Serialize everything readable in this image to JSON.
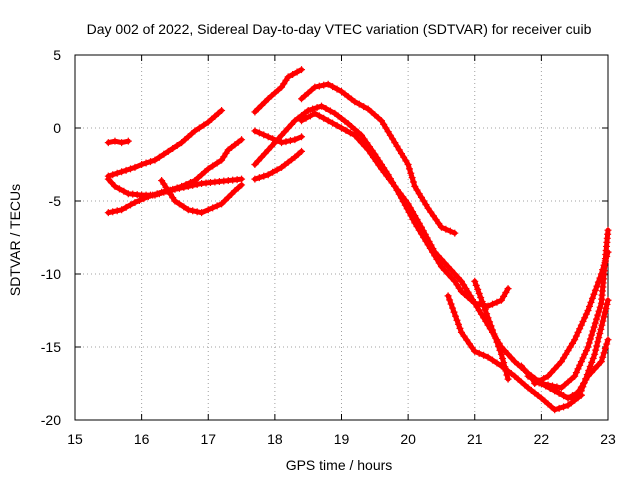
{
  "chart_data": {
    "type": "scatter",
    "title": "Day 002 of 2022, Sidereal Day-to-day VTEC variation (SDTVAR) for receiver cuib",
    "xlabel": "GPS time / hours",
    "ylabel": "SDTVAR / TECUs",
    "xlim": [
      15,
      23
    ],
    "ylim": [
      -20,
      5
    ],
    "xticks": [
      15,
      16,
      17,
      18,
      19,
      20,
      21,
      22,
      23
    ],
    "yticks": [
      5,
      0,
      -5,
      -10,
      -15,
      -20
    ],
    "xtick_labels": [
      "15",
      "16",
      "17",
      "18",
      "19",
      "20",
      "21",
      "22",
      "23"
    ],
    "ytick_labels": [
      "5",
      "0",
      "-5",
      "-10",
      "-15",
      "-20"
    ],
    "grid": true,
    "marker": "plus",
    "color": "#ff0000",
    "series": [
      {
        "name": "s1",
        "x": [
          15.5,
          15.6,
          15.7,
          15.8
        ],
        "y": [
          -1.0,
          -0.9,
          -1.0,
          -0.9
        ]
      },
      {
        "name": "s2",
        "x": [
          15.5,
          15.7,
          15.9,
          16.0,
          16.2,
          16.4,
          16.6,
          16.8,
          17.0,
          17.2
        ],
        "y": [
          -3.3,
          -3.0,
          -2.7,
          -2.5,
          -2.2,
          -1.6,
          -1.0,
          -0.2,
          0.4,
          1.2
        ]
      },
      {
        "name": "s3",
        "x": [
          15.5,
          15.6,
          15.8,
          16.0,
          16.2,
          16.4,
          16.6,
          16.8,
          17.0,
          17.2,
          17.3,
          17.5
        ],
        "y": [
          -3.5,
          -4.0,
          -4.5,
          -4.6,
          -4.6,
          -4.3,
          -4.0,
          -3.6,
          -2.8,
          -2.2,
          -1.5,
          -0.8
        ]
      },
      {
        "name": "s4",
        "x": [
          15.5,
          15.7,
          15.9,
          16.1,
          16.3,
          16.5,
          16.7,
          16.9,
          17.1,
          17.3,
          17.5
        ],
        "y": [
          -5.8,
          -5.6,
          -5.1,
          -4.7,
          -4.4,
          -4.2,
          -4.0,
          -3.8,
          -3.7,
          -3.6,
          -3.5
        ]
      },
      {
        "name": "s5",
        "x": [
          16.3,
          16.5,
          16.7,
          16.9,
          17.0,
          17.2,
          17.4,
          17.5
        ],
        "y": [
          -3.6,
          -5.0,
          -5.6,
          -5.8,
          -5.6,
          -5.2,
          -4.3,
          -3.9
        ]
      },
      {
        "name": "s6",
        "x": [
          17.7,
          17.9,
          18.1,
          18.3,
          18.4
        ],
        "y": [
          -0.2,
          -0.6,
          -1.0,
          -0.8,
          -0.6
        ]
      },
      {
        "name": "s7",
        "x": [
          17.7,
          17.9,
          18.1,
          18.2,
          18.4
        ],
        "y": [
          1.1,
          2.0,
          2.8,
          3.5,
          4.0
        ]
      },
      {
        "name": "s8",
        "x": [
          17.7,
          17.9,
          18.1,
          18.3,
          18.4
        ],
        "y": [
          -3.5,
          -3.2,
          -2.7,
          -2.0,
          -1.6
        ]
      },
      {
        "name": "s9",
        "x": [
          17.7,
          17.9,
          18.1,
          18.3,
          18.5,
          18.7,
          18.9,
          19.1,
          19.3,
          19.5,
          19.7,
          19.9,
          20.1,
          20.3,
          20.5,
          20.7,
          20.8,
          21.0,
          21.2,
          21.4,
          21.5
        ],
        "y": [
          -2.5,
          -1.5,
          -0.5,
          0.5,
          1.2,
          1.5,
          1.0,
          0.3,
          -0.5,
          -1.8,
          -3.2,
          -4.8,
          -6.5,
          -8.0,
          -9.5,
          -10.5,
          -11.2,
          -12.0,
          -12.2,
          -11.8,
          -11.0
        ]
      },
      {
        "name": "s10",
        "x": [
          18.4,
          18.6,
          18.8,
          19.0,
          19.2,
          19.4,
          19.6,
          19.8,
          20.0,
          20.1,
          20.3,
          20.5,
          20.7
        ],
        "y": [
          2.0,
          2.8,
          3.0,
          2.5,
          1.8,
          1.3,
          0.5,
          -1.0,
          -2.5,
          -4.0,
          -5.5,
          -6.8,
          -7.2
        ]
      },
      {
        "name": "s11",
        "x": [
          18.4,
          18.6,
          18.8,
          19.0,
          19.2,
          19.4,
          19.6,
          19.8,
          20.0,
          20.2,
          20.4,
          20.6,
          20.8,
          21.0,
          21.2,
          21.4,
          21.6,
          21.8,
          22.0,
          22.2,
          22.4,
          22.6
        ],
        "y": [
          0.5,
          1.0,
          0.5,
          0.0,
          -0.5,
          -1.5,
          -2.8,
          -4.0,
          -5.2,
          -6.8,
          -8.5,
          -9.5,
          -10.5,
          -12.0,
          -13.5,
          -15.0,
          -16.0,
          -16.8,
          -17.5,
          -18.0,
          -18.5,
          -18.3
        ]
      },
      {
        "name": "s12",
        "x": [
          20.6,
          20.8,
          21.0,
          21.2,
          21.4,
          21.6,
          21.8,
          22.0,
          22.2,
          22.4,
          22.6
        ],
        "y": [
          -11.5,
          -14.0,
          -15.3,
          -15.7,
          -16.3,
          -17.0,
          -17.8,
          -18.5,
          -19.3,
          -19.0,
          -18.3
        ]
      },
      {
        "name": "s13",
        "x": [
          21.0,
          21.2,
          21.4,
          21.5
        ],
        "y": [
          -10.5,
          -13.0,
          -15.5,
          -17.2
        ]
      },
      {
        "name": "s14",
        "x": [
          21.7,
          21.9,
          22.1,
          22.3,
          22.5,
          22.7,
          22.9,
          23.0
        ],
        "y": [
          -16.3,
          -17.4,
          -17.6,
          -17.8,
          -17.0,
          -15.0,
          -12.0,
          -7.0
        ]
      },
      {
        "name": "s15",
        "x": [
          21.8,
          22.0,
          22.2,
          22.4,
          22.6,
          22.8,
          23.0
        ],
        "y": [
          -17.0,
          -17.5,
          -18.0,
          -18.5,
          -18.0,
          -15.5,
          -11.8
        ]
      },
      {
        "name": "s16",
        "x": [
          21.9,
          22.1,
          22.3,
          22.5,
          22.7,
          22.9,
          23.0
        ],
        "y": [
          -17.5,
          -17.0,
          -16.0,
          -14.5,
          -12.5,
          -10.0,
          -8.5
        ]
      },
      {
        "name": "s17",
        "x": [
          22.5,
          22.7,
          22.9,
          23.0
        ],
        "y": [
          -18.5,
          -17.0,
          -16.0,
          -14.5
        ]
      }
    ]
  }
}
